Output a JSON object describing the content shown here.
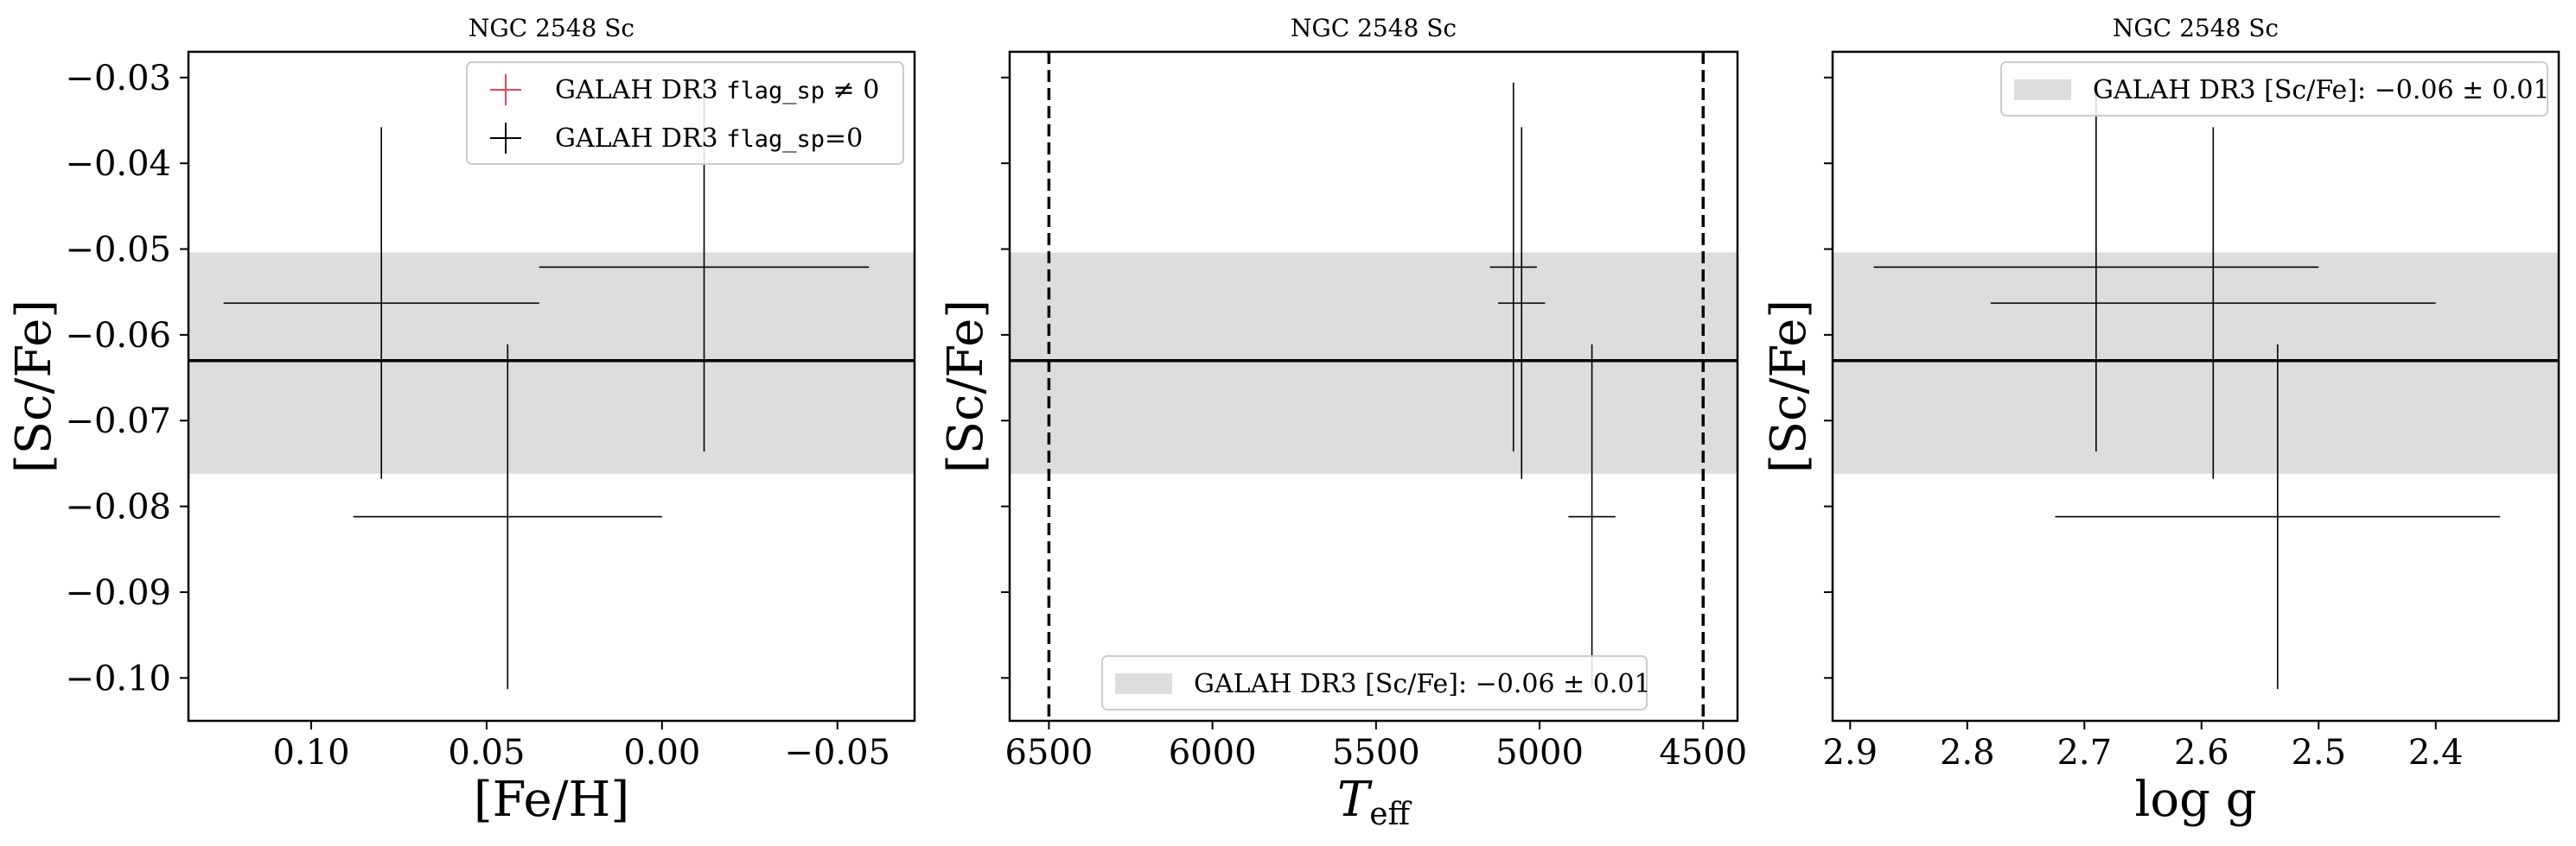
{
  "figure": {
    "band_color": "#dddddd",
    "mean_line_color": "#000000",
    "flag_color_nonzero": "#e8435a",
    "flag_color_zero": "#000000"
  },
  "chart_data": [
    {
      "type": "scatter",
      "title": "NGC 2548 Sc",
      "xlabel": "[Fe/H]",
      "ylabel": "[Sc/Fe]",
      "xlim": [
        0.135,
        -0.072
      ],
      "ylim": [
        -0.105,
        -0.027
      ],
      "x_inverted": true,
      "xticks": [
        0.1,
        0.05,
        0.0,
        -0.05
      ],
      "xtick_labels": [
        "0.10",
        "0.05",
        "0.00",
        "−0.05"
      ],
      "yticks": [
        -0.03,
        -0.04,
        -0.05,
        -0.06,
        -0.07,
        -0.08,
        -0.09,
        -0.1
      ],
      "ytick_labels": [
        "−0.03",
        "−0.04",
        "−0.05",
        "−0.06",
        "−0.07",
        "−0.08",
        "−0.09",
        "−0.10"
      ],
      "band": {
        "center": -0.063,
        "low": -0.0762,
        "high": -0.0504
      },
      "vlines": [],
      "points": [
        {
          "x": 0.08,
          "xerr": 0.045,
          "y": -0.0563,
          "yerr": 0.0205,
          "flag": 0
        },
        {
          "x": 0.044,
          "xerr": 0.044,
          "y": -0.0812,
          "yerr": 0.0201,
          "flag": 0
        },
        {
          "x": -0.012,
          "xerr": 0.047,
          "y": -0.0521,
          "yerr": 0.0215,
          "flag": 0
        }
      ],
      "legend": {
        "position": "upper right",
        "entries": [
          {
            "kind": "marker",
            "color": "#e8435a",
            "prefix": "GALAH DR3 ",
            "code": "flag_sp",
            "suffix": " ≠ 0"
          },
          {
            "kind": "marker",
            "color": "#000000",
            "prefix": "GALAH DR3 ",
            "code": "flag_sp",
            "suffix": "=0"
          }
        ]
      }
    },
    {
      "type": "scatter",
      "title": "NGC 2548 Sc",
      "xlabel": "T",
      "xlabel_sub": "eff",
      "ylabel": "[Sc/Fe]",
      "xlim": [
        6620,
        4395
      ],
      "ylim": [
        -0.105,
        -0.027
      ],
      "x_inverted": true,
      "xticks": [
        6500,
        6000,
        5500,
        5000,
        4500
      ],
      "xtick_labels": [
        "6500",
        "6000",
        "5500",
        "5000",
        "4500"
      ],
      "yticks": [
        -0.03,
        -0.04,
        -0.05,
        -0.06,
        -0.07,
        -0.08,
        -0.09,
        -0.1
      ],
      "ytick_labels": [],
      "band": {
        "center": -0.063,
        "low": -0.0762,
        "high": -0.0504
      },
      "vlines": [
        6500,
        4500
      ],
      "points": [
        {
          "x": 5080,
          "xerr": 72,
          "y": -0.0521,
          "yerr": 0.0215,
          "flag": 0
        },
        {
          "x": 5055,
          "xerr": 72,
          "y": -0.0563,
          "yerr": 0.0205,
          "flag": 0
        },
        {
          "x": 4840,
          "xerr": 72,
          "y": -0.0812,
          "yerr": 0.0201,
          "flag": 0
        }
      ],
      "legend": {
        "position": "lower center",
        "entries": [
          {
            "kind": "patch",
            "color": "#dddddd",
            "prefix": "GALAH DR3 [Sc/Fe]: −0.06 ± 0.01",
            "code": "",
            "suffix": ""
          }
        ]
      }
    },
    {
      "type": "scatter",
      "title": "NGC 2548 Sc",
      "xlabel": "log g",
      "ylabel": "[Sc/Fe]",
      "xlim": [
        2.915,
        2.295
      ],
      "ylim": [
        -0.105,
        -0.027
      ],
      "x_inverted": true,
      "xticks": [
        2.9,
        2.8,
        2.7,
        2.6,
        2.5,
        2.4
      ],
      "xtick_labels": [
        "2.9",
        "2.8",
        "2.7",
        "2.6",
        "2.5",
        "2.4"
      ],
      "yticks": [
        -0.03,
        -0.04,
        -0.05,
        -0.06,
        -0.07,
        -0.08,
        -0.09,
        -0.1
      ],
      "ytick_labels": [],
      "band": {
        "center": -0.063,
        "low": -0.0762,
        "high": -0.0504
      },
      "vlines": [],
      "points": [
        {
          "x": 2.69,
          "xerr": 0.19,
          "y": -0.0521,
          "yerr": 0.0215,
          "flag": 0
        },
        {
          "x": 2.59,
          "xerr": 0.19,
          "y": -0.0563,
          "yerr": 0.0205,
          "flag": 0
        },
        {
          "x": 2.535,
          "xerr": 0.19,
          "y": -0.0812,
          "yerr": 0.0201,
          "flag": 0
        }
      ],
      "legend": {
        "position": "upper right",
        "entries": [
          {
            "kind": "patch",
            "color": "#dddddd",
            "prefix": "GALAH DR3 [Sc/Fe]: −0.06 ± 0.01",
            "code": "",
            "suffix": ""
          }
        ]
      }
    }
  ]
}
